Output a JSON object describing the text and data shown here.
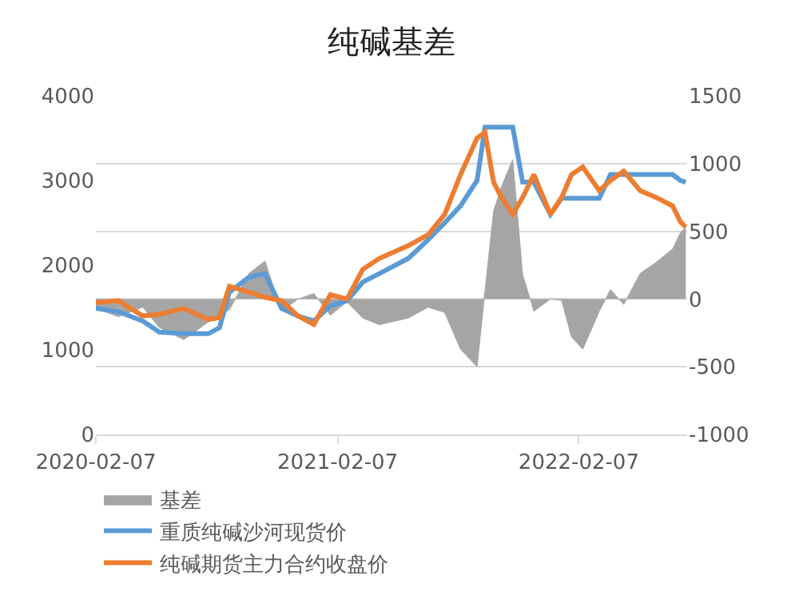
{
  "chart_data": {
    "type": "line",
    "title": "纯碱基差",
    "x": [
      "2020-02-07",
      "2020-03-12",
      "2020-04-18",
      "2020-05-13",
      "2020-06-19",
      "2020-07-26",
      "2020-08-12",
      "2020-08-27",
      "2020-09-26",
      "2020-10-20",
      "2020-11-14",
      "2020-12-09",
      "2021-01-02",
      "2021-01-27",
      "2021-02-21",
      "2021-03-17",
      "2021-04-11",
      "2021-05-25",
      "2021-06-24",
      "2021-07-19",
      "2021-08-12",
      "2021-09-06",
      "2021-09-18",
      "2021-10-01",
      "2021-10-13",
      "2021-10-30",
      "2021-11-14",
      "2021-12-01",
      "2021-12-26",
      "2022-01-12",
      "2022-01-27",
      "2022-02-13",
      "2022-03-10",
      "2022-03-27",
      "2022-04-16",
      "2022-05-11",
      "2022-06-04",
      "2022-06-29",
      "2022-07-11",
      "2022-07-19"
    ],
    "series": [
      {
        "name": "基差",
        "type": "area",
        "axis": "y2",
        "color": "#a5a5a5",
        "values": [
          -70,
          -130,
          -60,
          -210,
          -300,
          -170,
          -120,
          -80,
          190,
          280,
          -90,
          0,
          40,
          -120,
          -20,
          -140,
          -190,
          -140,
          -60,
          -100,
          -370,
          -500,
          60,
          650,
          830,
          1030,
          180,
          -90,
          0,
          -10,
          -280,
          -370,
          -90,
          70,
          -40,
          190,
          270,
          370,
          490,
          530
        ]
      },
      {
        "name": "重质纯碱沙河现货价",
        "color": "#5b9bd5",
        "values": [
          1490,
          1450,
          1340,
          1210,
          1190,
          1190,
          1260,
          1680,
          1860,
          1900,
          1490,
          1400,
          1340,
          1520,
          1580,
          1800,
          1900,
          2080,
          2300,
          2500,
          2700,
          3000,
          3630,
          3630,
          3630,
          3630,
          2980,
          2980,
          2600,
          2790,
          2790,
          2790,
          2790,
          3070,
          3070,
          3070,
          3070,
          3070,
          3000,
          2980
        ]
      },
      {
        "name": "纯碱期货主力合约收盘价",
        "color": "#ed7d31",
        "values": [
          1560,
          1580,
          1400,
          1420,
          1490,
          1360,
          1380,
          1750,
          1680,
          1620,
          1580,
          1400,
          1300,
          1650,
          1600,
          1950,
          2080,
          2230,
          2360,
          2600,
          3070,
          3500,
          3570,
          2980,
          2800,
          2600,
          2800,
          3070,
          2600,
          2800,
          3070,
          3160,
          2880,
          3000,
          3110,
          2880,
          2800,
          2700,
          2510,
          2450
        ]
      }
    ],
    "xlim": [
      "2020-02-07",
      "2022-07-21"
    ],
    "xticks": [
      "2020-02-07",
      "2021-02-07",
      "2022-02-07"
    ],
    "ylim": [
      0,
      4000
    ],
    "yticks": [
      0,
      1000,
      2000,
      3000,
      4000
    ],
    "y2lim": [
      -1000,
      1500
    ],
    "y2ticks": [
      -1000,
      -500,
      0,
      500,
      1000,
      1500
    ],
    "grid": "y",
    "legend": "bottom"
  }
}
